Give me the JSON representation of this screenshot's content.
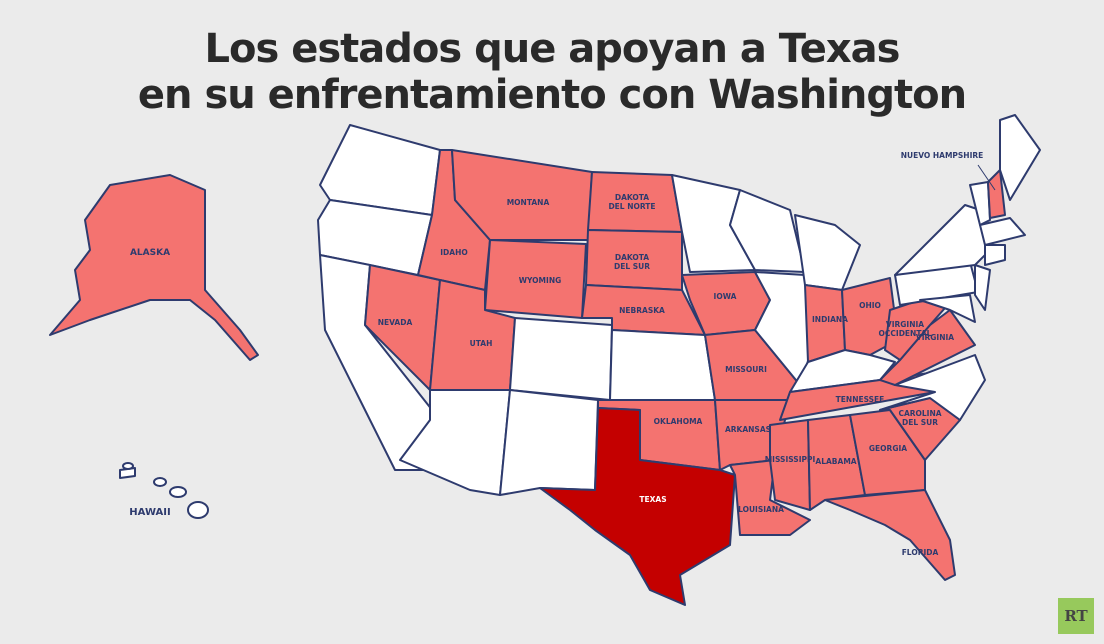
{
  "title": {
    "line1": "Los estados que apoyan a Texas",
    "line2": "en su enfrentamiento con Washington"
  },
  "colors": {
    "background": "#ebebeb",
    "supporting": "#f47370",
    "texas": "#c40000",
    "neutral": "#ffffff",
    "border": "#2e3b6e"
  },
  "legend_logo": "RT",
  "states": [
    {
      "id": "WA",
      "label": "",
      "status": "neutral"
    },
    {
      "id": "OR",
      "label": "",
      "status": "neutral"
    },
    {
      "id": "CA",
      "label": "",
      "status": "neutral"
    },
    {
      "id": "NV",
      "label": "NEVADA",
      "status": "supporting"
    },
    {
      "id": "ID",
      "label": "IDAHO",
      "status": "supporting"
    },
    {
      "id": "MT",
      "label": "MONTANA",
      "status": "supporting"
    },
    {
      "id": "WY",
      "label": "WYOMING",
      "status": "supporting"
    },
    {
      "id": "UT",
      "label": "UTAH",
      "status": "supporting"
    },
    {
      "id": "CO",
      "label": "",
      "status": "neutral"
    },
    {
      "id": "AZ",
      "label": "",
      "status": "neutral"
    },
    {
      "id": "NM",
      "label": "",
      "status": "neutral"
    },
    {
      "id": "ND",
      "label": "DAKOTA DEL NORTE",
      "status": "supporting"
    },
    {
      "id": "SD",
      "label": "DAKOTA DEL SUR",
      "status": "supporting"
    },
    {
      "id": "NE",
      "label": "NEBRASKA",
      "status": "supporting"
    },
    {
      "id": "KS",
      "label": "",
      "status": "neutral"
    },
    {
      "id": "OK",
      "label": "OKLAHOMA",
      "status": "supporting"
    },
    {
      "id": "TX",
      "label": "TEXAS",
      "status": "texas"
    },
    {
      "id": "MN",
      "label": "",
      "status": "neutral"
    },
    {
      "id": "IA",
      "label": "IOWA",
      "status": "supporting"
    },
    {
      "id": "MO",
      "label": "MISSOURI",
      "status": "supporting"
    },
    {
      "id": "AR",
      "label": "ARKANSAS",
      "status": "supporting"
    },
    {
      "id": "LA",
      "label": "LOUISIANA",
      "status": "supporting"
    },
    {
      "id": "WI",
      "label": "",
      "status": "neutral"
    },
    {
      "id": "IL",
      "label": "",
      "status": "neutral"
    },
    {
      "id": "MI",
      "label": "",
      "status": "neutral"
    },
    {
      "id": "IN",
      "label": "INDIANA",
      "status": "supporting"
    },
    {
      "id": "OH",
      "label": "OHIO",
      "status": "supporting"
    },
    {
      "id": "KY",
      "label": "",
      "status": "neutral"
    },
    {
      "id": "TN",
      "label": "TENNESSEE",
      "status": "supporting"
    },
    {
      "id": "MS",
      "label": "MISSISSIPPI",
      "status": "supporting"
    },
    {
      "id": "AL",
      "label": "ALABAMA",
      "status": "supporting"
    },
    {
      "id": "GA",
      "label": "GEORGIA",
      "status": "supporting"
    },
    {
      "id": "FL",
      "label": "FLORIDA",
      "status": "supporting"
    },
    {
      "id": "SC",
      "label": "CAROLINA DEL SUR",
      "status": "supporting"
    },
    {
      "id": "NC",
      "label": "",
      "status": "neutral"
    },
    {
      "id": "VA",
      "label": "VIRGINIA",
      "status": "supporting"
    },
    {
      "id": "WV",
      "label": "VIRGINIA OCCIDENTAL",
      "status": "supporting"
    },
    {
      "id": "PA",
      "label": "",
      "status": "neutral"
    },
    {
      "id": "NY",
      "label": "",
      "status": "neutral"
    },
    {
      "id": "MD",
      "label": "",
      "status": "neutral"
    },
    {
      "id": "NJ",
      "label": "",
      "status": "neutral"
    },
    {
      "id": "VT",
      "label": "",
      "status": "neutral"
    },
    {
      "id": "NH",
      "label": "NUEVO HAMPSHIRE",
      "status": "supporting"
    },
    {
      "id": "ME",
      "label": "",
      "status": "neutral"
    },
    {
      "id": "MA",
      "label": "",
      "status": "neutral"
    },
    {
      "id": "CT",
      "label": "",
      "status": "neutral"
    },
    {
      "id": "AK",
      "label": "ALASKA",
      "status": "supporting"
    },
    {
      "id": "HI",
      "label": "HAWAII",
      "status": "neutral"
    }
  ]
}
